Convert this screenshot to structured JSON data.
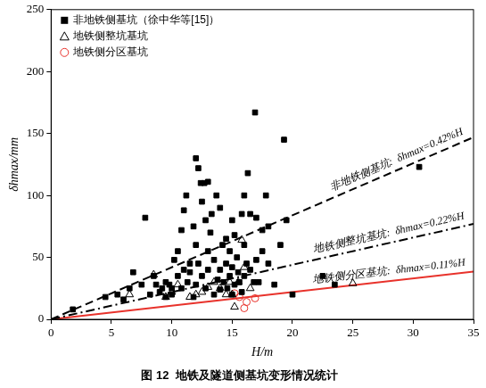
{
  "chart_data": {
    "type": "scatter",
    "title": "图 12  地铁及隧道侧基坑变形情况统计",
    "x_label": "H/m",
    "y_label": "δhmax/mm",
    "xlim": [
      0,
      35
    ],
    "xticks": [
      0,
      5,
      10,
      15,
      20,
      25,
      30,
      35
    ],
    "ylim": [
      0,
      250
    ],
    "yticks": [
      0,
      50,
      100,
      150,
      200,
      250
    ],
    "grid": false,
    "legend": "upper left",
    "series": [
      {
        "name": "非地铁侧基坑（徐中华等[15]）",
        "color": "#000000",
        "marker": "square",
        "x": [
          1.8,
          4.5,
          5.5,
          6,
          6.5,
          6.8,
          7.5,
          7.8,
          8.2,
          8.5,
          8.7,
          9,
          9.2,
          9.5,
          9.5,
          9.8,
          10,
          10,
          10.2,
          10.5,
          10.5,
          10.8,
          10.8,
          11,
          11,
          11.2,
          11.3,
          11.5,
          11.5,
          11.8,
          11.8,
          12,
          12,
          12,
          12.2,
          12.2,
          12.4,
          12.5,
          12.5,
          12.7,
          12.8,
          12.8,
          13,
          13,
          13,
          13.2,
          13.3,
          13.5,
          13.5,
          13.7,
          13.8,
          14,
          14,
          14,
          14.2,
          14.3,
          14.5,
          14.5,
          14.6,
          14.8,
          14.8,
          15,
          15,
          15,
          15.2,
          15.2,
          15.4,
          15.5,
          15.6,
          15.8,
          15.8,
          16,
          16,
          16,
          16.2,
          16.3,
          16.5,
          16.5,
          16.8,
          16.9,
          17,
          17,
          17.2,
          17.5,
          17.5,
          17.8,
          18,
          18,
          18.5,
          19,
          19.3,
          19.5,
          20,
          22.5,
          23.5,
          30.5
        ],
        "values": [
          8,
          18,
          20,
          16,
          25,
          38,
          28,
          82,
          20,
          35,
          28,
          22,
          25,
          18,
          30,
          28,
          20,
          25,
          48,
          55,
          35,
          72,
          25,
          40,
          88,
          100,
          30,
          45,
          38,
          18,
          75,
          130,
          60,
          28,
          122,
          45,
          110,
          95,
          35,
          110,
          80,
          25,
          111,
          55,
          40,
          70,
          85,
          20,
          48,
          100,
          32,
          40,
          90,
          24,
          60,
          30,
          65,
          45,
          25,
          55,
          35,
          80,
          42,
          20,
          68,
          28,
          50,
          38,
          30,
          85,
          22,
          100,
          60,
          35,
          45,
          118,
          85,
          40,
          30,
          167,
          82,
          48,
          30,
          72,
          55,
          100,
          75,
          45,
          28,
          60,
          145,
          80,
          20,
          35,
          28,
          123
        ]
      },
      {
        "name": "地铁侧整坑基坑",
        "color": "#000000",
        "marker": "triangle-open",
        "x": [
          6.5,
          8.5,
          9.5,
          10,
          10.5,
          11.5,
          12,
          12.5,
          13,
          13.5,
          14,
          14.5,
          14.8,
          15,
          15.2,
          15.5,
          15.8,
          16,
          16.5,
          25
        ],
        "values": [
          20,
          36,
          18,
          22,
          28,
          18,
          20,
          22,
          26,
          30,
          25,
          20,
          30,
          20,
          10,
          30,
          64,
          42,
          25,
          29
        ]
      },
      {
        "name": "地铁侧分区基坑",
        "color": "#e8322b",
        "marker": "circle-open",
        "x": [
          15.2,
          15.6,
          16,
          16.2,
          16.9
        ],
        "values": [
          21,
          18,
          9,
          14,
          17
        ]
      }
    ],
    "reference_lines": [
      {
        "label": "非地铁侧基坑:  δhmax=0.42%H",
        "color": "#000000",
        "line_style": "dashed",
        "x": [
          0,
          35
        ],
        "values": [
          0,
          147
        ]
      },
      {
        "label": "地铁侧整坑基坑:  δhmax=0.22%H",
        "color": "#000000",
        "line_style": "dashdot",
        "x": [
          0,
          35
        ],
        "values": [
          0,
          77
        ]
      },
      {
        "label": "地铁侧分区基坑:  δhmax=0.11%H",
        "color": "#e8322b",
        "line_style": "solid",
        "x": [
          0,
          35
        ],
        "values": [
          0,
          38.5
        ]
      }
    ]
  }
}
